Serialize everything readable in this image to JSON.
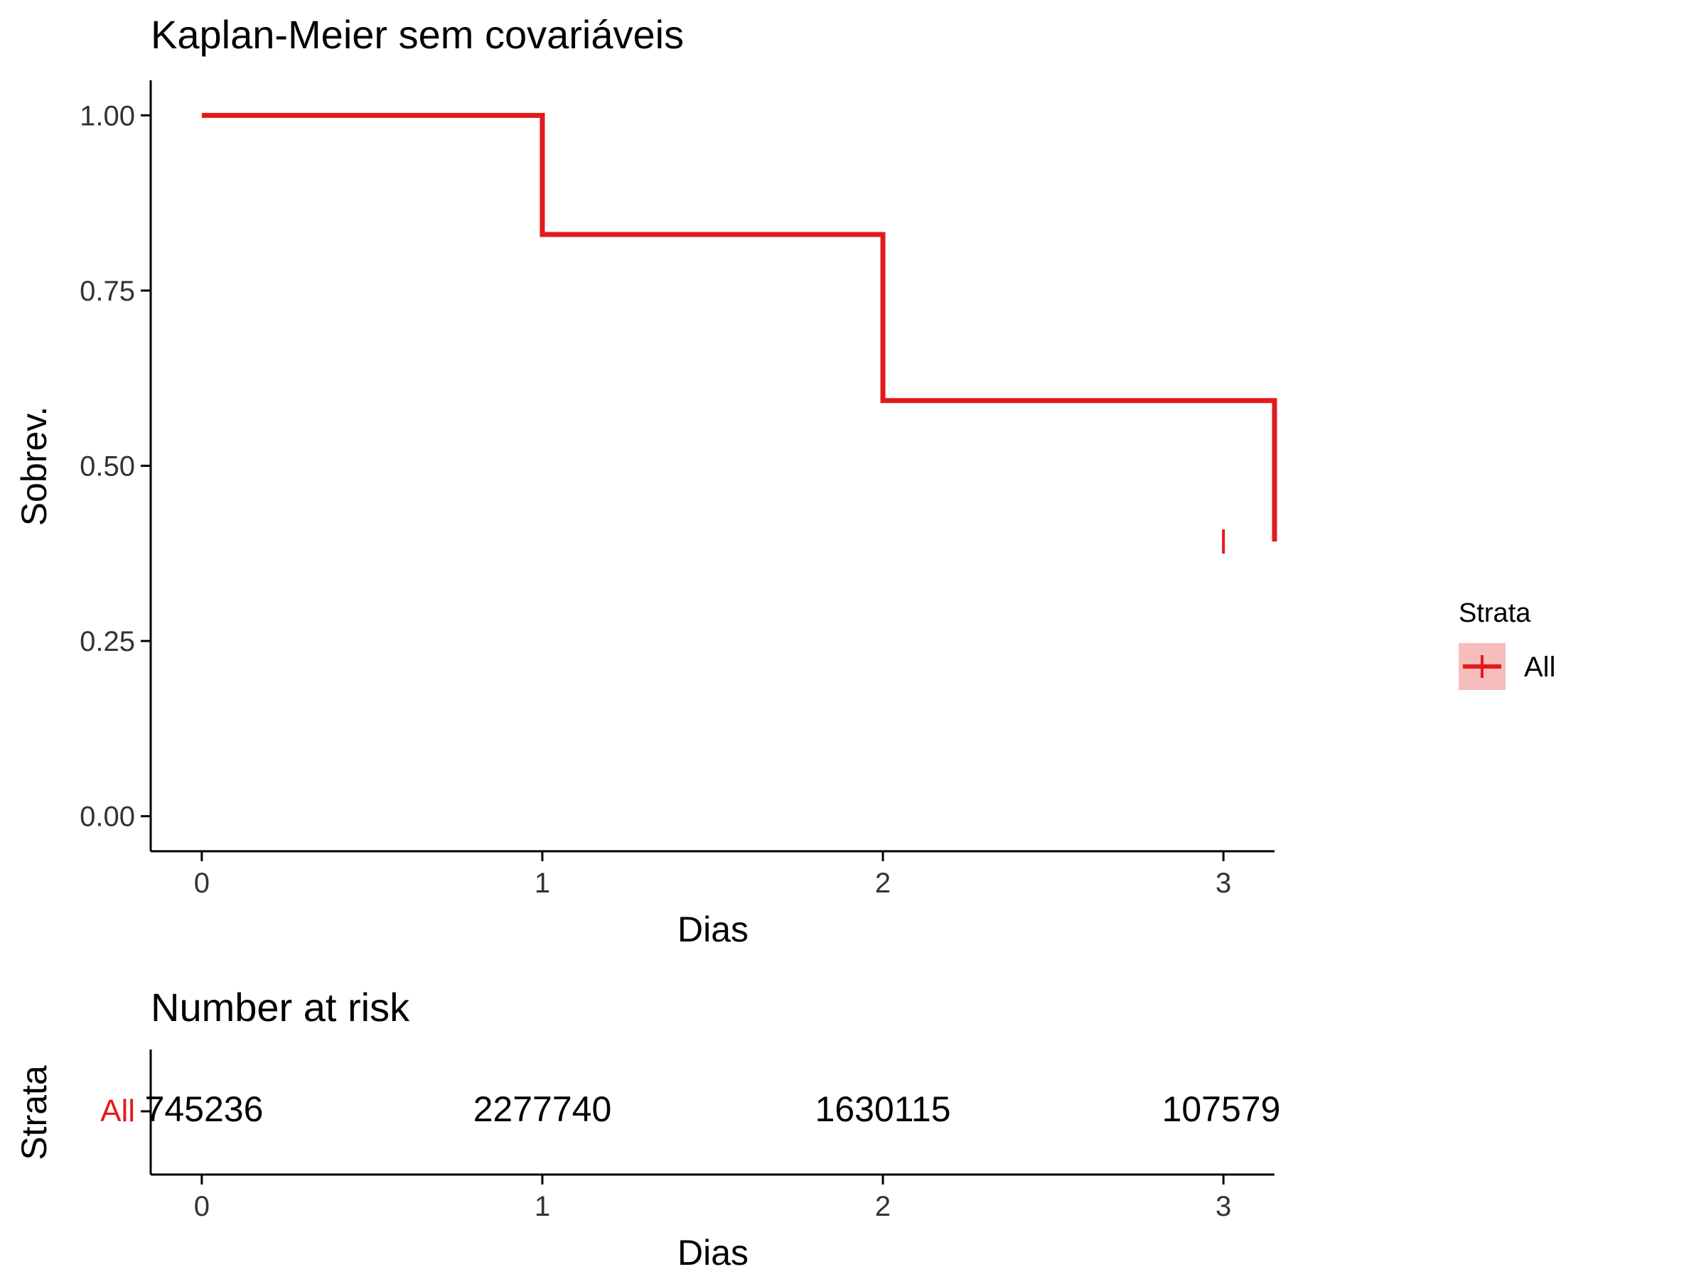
{
  "chart_data": [
    {
      "type": "line",
      "subtype": "kaplan-meier step curve",
      "title": "Kaplan-Meier sem covariáveis",
      "xlabel": "Dias",
      "ylabel": "Sobrev.",
      "xlim": [
        -0.15,
        3.15
      ],
      "ylim": [
        -0.05,
        1.05
      ],
      "xticks": [
        0,
        1,
        2,
        3
      ],
      "xtick_labels": [
        "0",
        "1",
        "2",
        "3"
      ],
      "yticks": [
        0,
        0.25,
        0.5,
        0.75,
        1.0
      ],
      "ytick_labels": [
        "0.00",
        "0.25",
        "0.50",
        "0.75",
        "1.00"
      ],
      "grid": false,
      "series": [
        {
          "name": "All",
          "color": "#e31a1c",
          "x": [
            0,
            1,
            2,
            3.15
          ],
          "y": [
            1.0,
            0.83,
            0.593,
            0.392
          ],
          "censor_marks": [
            {
              "x": 3,
              "y": 0.392
            }
          ]
        }
      ],
      "legend": {
        "title": "Strata",
        "placement": "right",
        "entries": [
          {
            "label": "All",
            "color": "#e31a1c",
            "fill": "#f7bcbc"
          }
        ]
      }
    },
    {
      "type": "table",
      "title": "Number at risk",
      "xlabel": "Dias",
      "ylabel": "Strata",
      "xlim": [
        -0.15,
        3.15
      ],
      "xticks": [
        0,
        1,
        2,
        3
      ],
      "xtick_labels": [
        "0",
        "1",
        "2",
        "3"
      ],
      "rows": [
        {
          "strata": "All",
          "color": "#e31a1c",
          "x": [
            0,
            1,
            2,
            3
          ],
          "values": [
            "745236",
            "2277740",
            "1630115",
            "107579"
          ]
        }
      ]
    }
  ]
}
